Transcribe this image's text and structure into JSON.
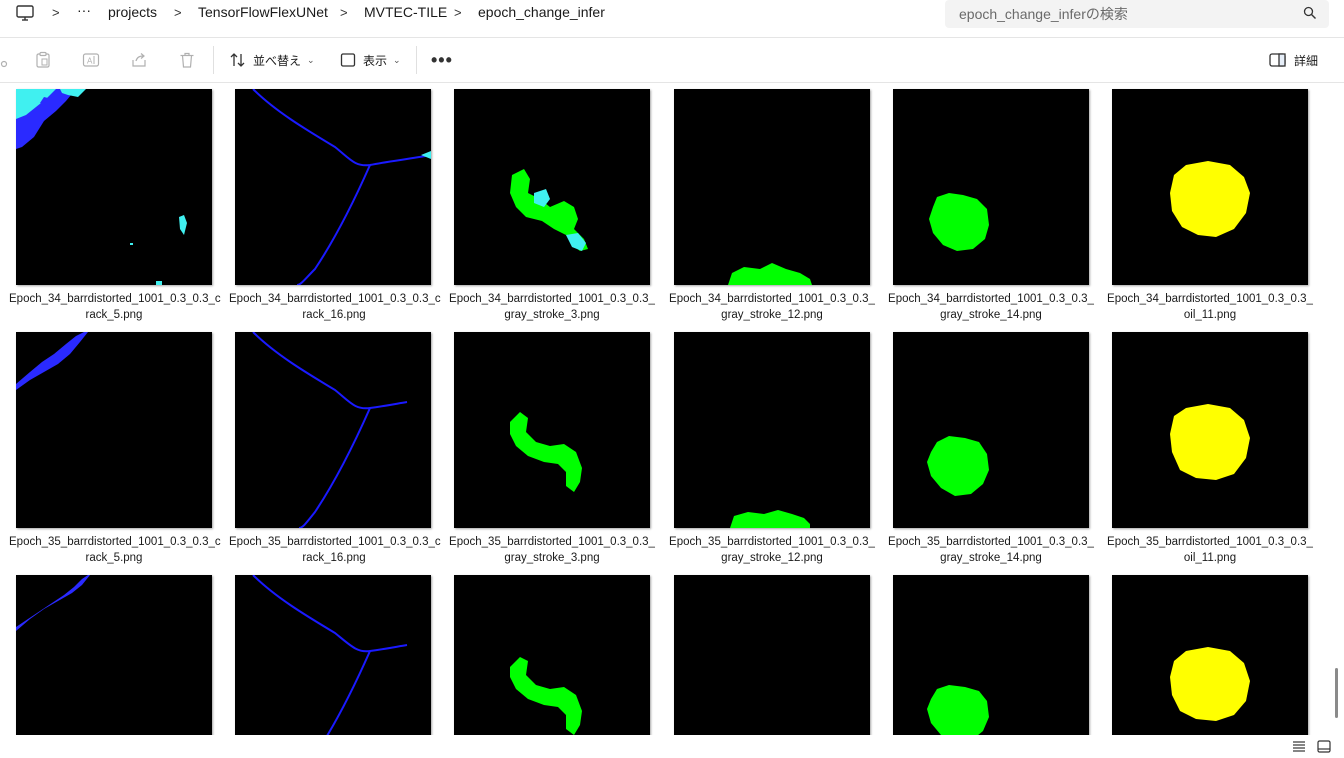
{
  "breadcrumb": {
    "more": "···",
    "items": [
      "projects",
      "TensorFlowFlexUNet",
      "MVTEC-TILE",
      "epoch_change_infer"
    ],
    "separator": ">"
  },
  "search": {
    "placeholder": "epoch_change_inferの検索"
  },
  "toolbar": {
    "sort_label": "並べ替え",
    "view_label": "表示",
    "more_label": "•••",
    "details_label": "詳細"
  },
  "files": {
    "row1": [
      "Epoch_34_barrdistorted_1001_0.3_0.3_crack_5.png",
      "Epoch_34_barrdistorted_1001_0.3_0.3_crack_16.png",
      "Epoch_34_barrdistorted_1001_0.3_0.3_gray_stroke_3.png",
      "Epoch_34_barrdistorted_1001_0.3_0.3_gray_stroke_12.png",
      "Epoch_34_barrdistorted_1001_0.3_0.3_gray_stroke_14.png",
      "Epoch_34_barrdistorted_1001_0.3_0.3_oil_11.png"
    ],
    "row2": [
      "Epoch_35_barrdistorted_1001_0.3_0.3_crack_5.png",
      "Epoch_35_barrdistorted_1001_0.3_0.3_crack_16.png",
      "Epoch_35_barrdistorted_1001_0.3_0.3_gray_stroke_3.png",
      "Epoch_35_barrdistorted_1001_0.3_0.3_gray_stroke_12.png",
      "Epoch_35_barrdistorted_1001_0.3_0.3_gray_stroke_14.png",
      "Epoch_35_barrdistorted_1001_0.3_0.3_oil_11.png"
    ],
    "captions_row1": [
      "Epoch_34_barrdistorted_1001_0.3_0.3_c\nrack_5.png",
      "Epoch_34_barrdistorted_1001_0.3_0.3_c\nrack_16.png",
      "Epoch_34_barrdistorted_1001_0.3_0.3_\ngray_stroke_3.png",
      "Epoch_34_barrdistorted_1001_0.3_0.3_\ngray_stroke_12.png",
      "Epoch_34_barrdistorted_1001_0.3_0.3_\ngray_stroke_14.png",
      "Epoch_34_barrdistorted_1001_0.3_0.3_\noil_11.png"
    ],
    "captions_row2": [
      "Epoch_35_barrdistorted_1001_0.3_0.3_c\nrack_5.png",
      "Epoch_35_barrdistorted_1001_0.3_0.3_c\nrack_16.png",
      "Epoch_35_barrdistorted_1001_0.3_0.3_\ngray_stroke_3.png",
      "Epoch_35_barrdistorted_1001_0.3_0.3_\ngray_stroke_12.png",
      "Epoch_35_barrdistorted_1001_0.3_0.3_\ngray_stroke_14.png",
      "Epoch_35_barrdistorted_1001_0.3_0.3_\noil_11.png"
    ]
  },
  "colors": {
    "mask_background": "#000000",
    "crack": "#1a1aff",
    "crack_cyan": "#40f0f0",
    "gray_stroke": "#00ff00",
    "oil": "#ffff00",
    "accent": "#0067c0"
  },
  "icons": [
    "pc-icon",
    "search-icon",
    "cut-icon",
    "paste-icon",
    "rename-icon",
    "share-icon",
    "delete-icon",
    "sort-icon",
    "view-icon",
    "more-icon",
    "details-pane-icon",
    "view-list-icon",
    "view-tiles-icon"
  ]
}
